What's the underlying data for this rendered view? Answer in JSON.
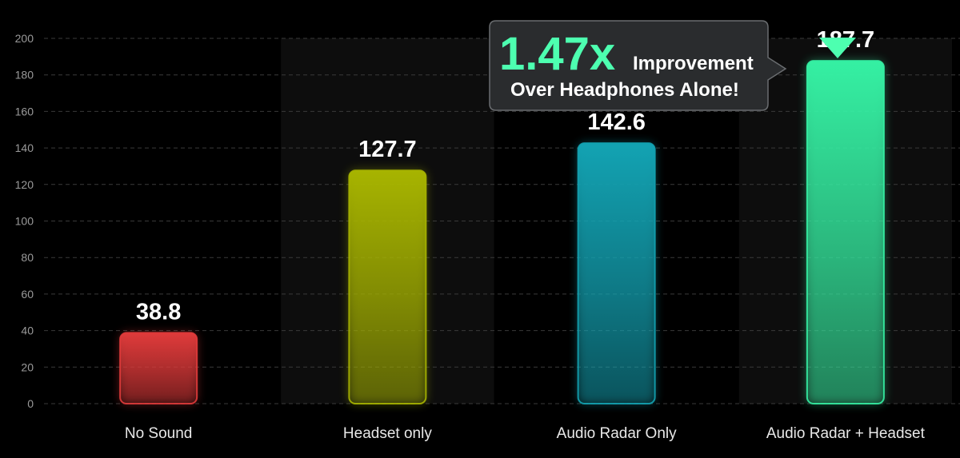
{
  "chart_data": {
    "type": "bar",
    "categories": [
      "No Sound",
      "Headset only",
      "Audio Radar Only",
      "Audio Radar + Headset"
    ],
    "values": [
      38.8,
      127.7,
      142.6,
      187.7
    ],
    "value_labels": [
      "38.8",
      "127.7",
      "142.6",
      "187.7"
    ],
    "colors": [
      "#e03b3b",
      "#a7b400",
      "#13a3b3",
      "#35f0a3"
    ],
    "ylim": [
      0,
      200
    ],
    "yticks": [
      0,
      20,
      40,
      60,
      80,
      100,
      120,
      140,
      160,
      180,
      200
    ],
    "grid": true,
    "legend": "none",
    "title": "",
    "xlabel": "",
    "ylabel": "",
    "annotation": {
      "multiplier": "1.47x",
      "text_line1": "Improvement",
      "text_line2": "Over Headphones Alone!",
      "target_category": "Audio Radar + Headset",
      "accent_color": "#4dffb0"
    }
  }
}
